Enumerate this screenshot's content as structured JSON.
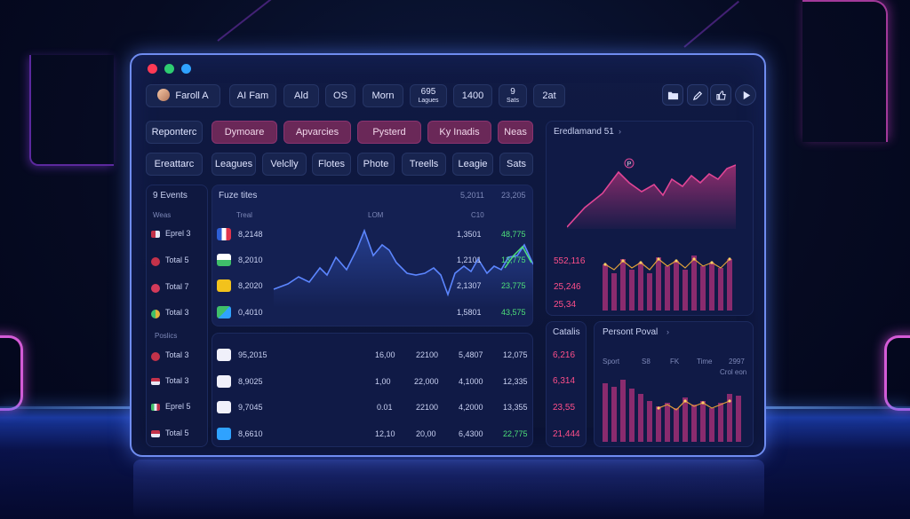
{
  "window": {
    "user_label": "Faroll A",
    "header_pills": [
      "AI Fam",
      "Ald",
      "OS",
      "Morn",
      "695",
      "1400",
      "9",
      "2at"
    ],
    "header_pill_sub": {
      "695": "Lagues",
      "9": "Sats"
    },
    "header_icons": [
      "folder-icon",
      "edit-icon",
      "like-icon",
      "play-icon"
    ]
  },
  "tabs_row1": [
    "Reponterc",
    "Dymoare",
    "Apvarcies",
    "Pysterd",
    "Ky Inadis",
    "Neas"
  ],
  "tabs_row2": [
    "Ereattarc",
    "Leagues",
    "Velclly",
    "Flotes",
    "Phote",
    "Treells",
    "Leagie",
    "Sats"
  ],
  "left_list": {
    "header": "9 Events",
    "subheader": "Weas",
    "section2": "Poslics",
    "items1": [
      {
        "label": "Eprel 3"
      },
      {
        "label": "Total 5"
      },
      {
        "label": "Total 7"
      },
      {
        "label": "Total 3"
      }
    ],
    "items2": [
      {
        "label": "Total 3"
      },
      {
        "label": "Total 3"
      },
      {
        "label": "Eprel 5"
      },
      {
        "label": "Total 5"
      }
    ]
  },
  "main_table": {
    "title": "Fuze tites",
    "top_vals": [
      "5,2011",
      "23,205"
    ],
    "cols": [
      "Treal",
      "LOM",
      "C10"
    ],
    "rows1": [
      {
        "v1": "8,2148",
        "v2": "1,3501",
        "v3": "48,775"
      },
      {
        "v1": "8,2010",
        "v2": "1,2101",
        "v3": "13,775"
      },
      {
        "v1": "8,2020",
        "v2": "2,1307",
        "v3": "23,775"
      },
      {
        "v1": "0,4010",
        "v2": "1,5801",
        "v3": "43,575"
      }
    ],
    "rows2": [
      {
        "v1": "95,2015",
        "a": "16,00",
        "b": "22100",
        "c": "5,4807",
        "d": "12,075"
      },
      {
        "v1": "8,9025",
        "a": "1,00",
        "b": "22,000",
        "c": "4,1000",
        "d": "12,335"
      },
      {
        "v1": "9,7045",
        "a": "0.01",
        "b": "22100",
        "c": "4,2000",
        "d": "13,355"
      },
      {
        "v1": "8,6610",
        "a": "12,10",
        "b": "20,00",
        "c": "6,4300",
        "d": "22,775"
      }
    ]
  },
  "right_panel": {
    "title": "Eredlamand 51",
    "marker": "P",
    "stats": [
      "552,116",
      "25,246",
      "25,34"
    ],
    "catalis": "Catalis",
    "bottom_stats": [
      "6,216",
      "6,314",
      "23,55",
      "21,444"
    ],
    "person_title": "Persont Poval",
    "person_cols": [
      "Sport",
      "S8",
      "FK",
      "Time",
      "2997"
    ],
    "person_sub": "Crol eon"
  },
  "colors": {
    "accent": "#d7378a",
    "green": "#4ee07a",
    "frame": "#6f8cf0"
  }
}
